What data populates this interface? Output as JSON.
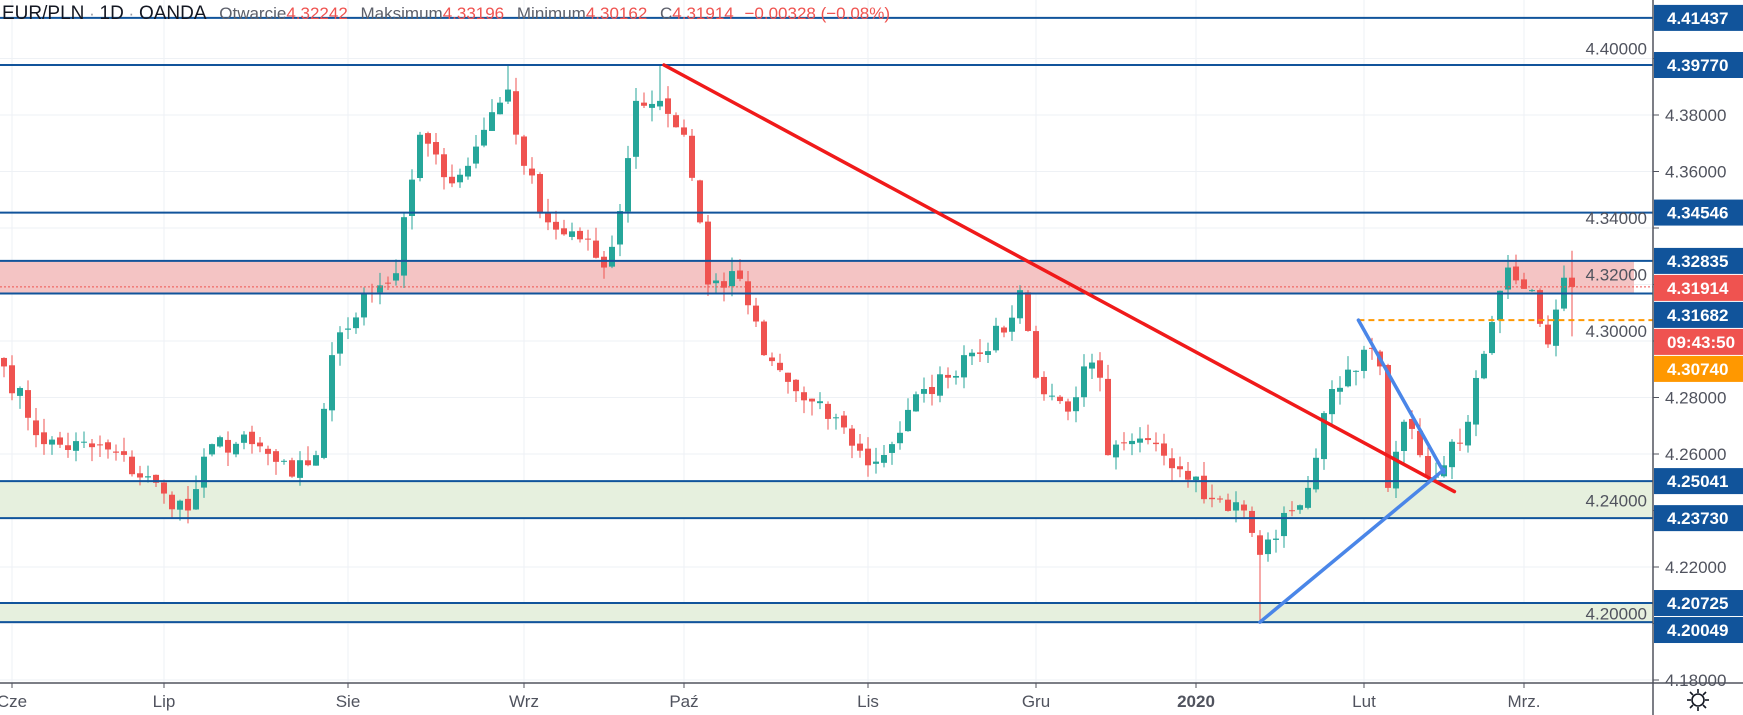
{
  "header": {
    "symbol": "EUR/PLN",
    "sep": "·",
    "interval": "1D",
    "exchange": "OANDA",
    "open_label": "Otwarcie",
    "open": "4.32242",
    "high_label": "Maksimum",
    "high": "4.33196",
    "low_label": "Minimum",
    "low": "4.30162",
    "close_label": "C",
    "close": "4.31914",
    "change": "−0.00328 (−0.08%)"
  },
  "colors": {
    "up": "#26a69a",
    "down": "#ef5350",
    "level": "#11549b",
    "trend_red": "#f01a1a",
    "trend_blue": "#4a86e8",
    "orange": "#ff9800",
    "zone_red": "#f4c4c4",
    "zone_green": "#e6f0de"
  },
  "chart_data": {
    "type": "candlestick",
    "title": "EUR/PLN 1D OANDA",
    "ylim": [
      4.18,
      4.42
    ],
    "y_ticks": [
      "4.18000",
      "4.20000",
      "4.22000",
      "4.24000",
      "4.26000",
      "4.28000",
      "4.30000",
      "4.32000",
      "4.34000",
      "4.36000",
      "4.38000",
      "4.40000"
    ],
    "x_labels": [
      {
        "label": "Cze",
        "bar": 1
      },
      {
        "label": "Lip",
        "bar": 20
      },
      {
        "label": "Sie",
        "bar": 43
      },
      {
        "label": "Wrz",
        "bar": 65
      },
      {
        "label": "Paź",
        "bar": 85
      },
      {
        "label": "Lis",
        "bar": 108
      },
      {
        "label": "Gru",
        "bar": 129
      },
      {
        "label": "2020",
        "bar": 149
      },
      {
        "label": "Lut",
        "bar": 170
      },
      {
        "label": "Mrz.",
        "bar": 190
      }
    ],
    "bar_count": 197,
    "close_waypoints": [
      [
        0,
        4.291
      ],
      [
        5,
        4.2635
      ],
      [
        13,
        4.2616
      ],
      [
        20,
        4.246
      ],
      [
        23,
        4.24
      ],
      [
        26,
        4.2635
      ],
      [
        31,
        4.2635
      ],
      [
        36,
        4.252
      ],
      [
        39,
        4.2596
      ],
      [
        41,
        4.295
      ],
      [
        45,
        4.3165
      ],
      [
        49,
        4.324
      ],
      [
        52,
        4.373
      ],
      [
        55,
        4.358
      ],
      [
        58,
        4.362
      ],
      [
        61,
        4.381
      ],
      [
        63,
        4.389
      ],
      [
        65,
        4.362
      ],
      [
        68,
        4.342
      ],
      [
        72,
        4.336
      ],
      [
        75,
        4.326
      ],
      [
        77,
        4.346
      ],
      [
        79,
        4.385
      ],
      [
        82,
        4.385
      ],
      [
        85,
        4.373
      ],
      [
        87,
        4.342
      ],
      [
        88,
        4.32
      ],
      [
        92,
        4.322
      ],
      [
        95,
        4.295
      ],
      [
        100,
        4.279
      ],
      [
        105,
        4.2694
      ],
      [
        108,
        4.256
      ],
      [
        111,
        4.2635
      ],
      [
        115,
        4.283
      ],
      [
        118,
        4.287
      ],
      [
        120,
        4.295
      ],
      [
        125,
        4.303
      ],
      [
        127,
        4.318
      ],
      [
        129,
        4.287
      ],
      [
        133,
        4.275
      ],
      [
        135,
        4.291
      ],
      [
        137,
        4.287
      ],
      [
        138,
        4.2596
      ],
      [
        144,
        4.2635
      ],
      [
        149,
        4.252
      ],
      [
        151,
        4.244
      ],
      [
        155,
        4.24
      ],
      [
        157,
        4.2243
      ],
      [
        161,
        4.24
      ],
      [
        163,
        4.248
      ],
      [
        166,
        4.283
      ],
      [
        170,
        4.2969
      ],
      [
        172,
        4.291
      ],
      [
        173,
        4.248
      ],
      [
        175,
        4.2714
      ],
      [
        177,
        4.2596
      ],
      [
        179,
        4.252
      ],
      [
        180,
        4.256
      ],
      [
        183,
        4.2714
      ],
      [
        186,
        4.3067
      ],
      [
        188,
        4.326
      ],
      [
        191,
        4.318
      ],
      [
        193,
        4.2988
      ],
      [
        195,
        4.3224
      ],
      [
        196,
        4.31914
      ]
    ],
    "overrides": {
      "63": {
        "h": 4.3977
      },
      "82": {
        "h": 4.3977
      },
      "157": {
        "l": 4.2005
      },
      "196": {
        "o": 4.32242,
        "h": 4.33196,
        "l": 4.30162,
        "c": 4.31914
      }
    },
    "levels": [
      {
        "price": 4.41437,
        "label": "4.41437"
      },
      {
        "price": 4.3977,
        "label": "4.39770"
      },
      {
        "price": 4.34546,
        "label": "4.34546"
      },
      {
        "price": 4.32835,
        "label": "4.32835"
      },
      {
        "price": 4.31682,
        "label": "4.31682"
      },
      {
        "price": 4.25041,
        "label": "4.25041"
      },
      {
        "price": 4.2373,
        "label": "4.23730"
      },
      {
        "price": 4.20725,
        "label": "4.20725"
      },
      {
        "price": 4.20049,
        "label": "4.20049"
      }
    ],
    "zones": [
      {
        "from": 4.31682,
        "to": 4.32835,
        "color": "red"
      },
      {
        "from": 4.2373,
        "to": 4.25041,
        "color": "green"
      },
      {
        "from": 4.20049,
        "to": 4.20725,
        "color": "green"
      }
    ],
    "last_price": {
      "price": 4.31914,
      "label": "4.31914",
      "countdown": "09:43:50"
    },
    "orange_line": {
      "price": 4.3074,
      "label": "4.30740",
      "from_bar": 169.3
    },
    "trendlines": [
      {
        "color": "red",
        "from": [
          82.5,
          4.3977
        ],
        "to": [
          181.3,
          4.2467
        ]
      },
      {
        "color": "blue",
        "from": [
          157,
          4.2005
        ],
        "to": [
          180,
          4.2545
        ]
      },
      {
        "color": "blue",
        "from": [
          169.3,
          4.3074
        ],
        "to": [
          180,
          4.2534
        ]
      }
    ]
  }
}
